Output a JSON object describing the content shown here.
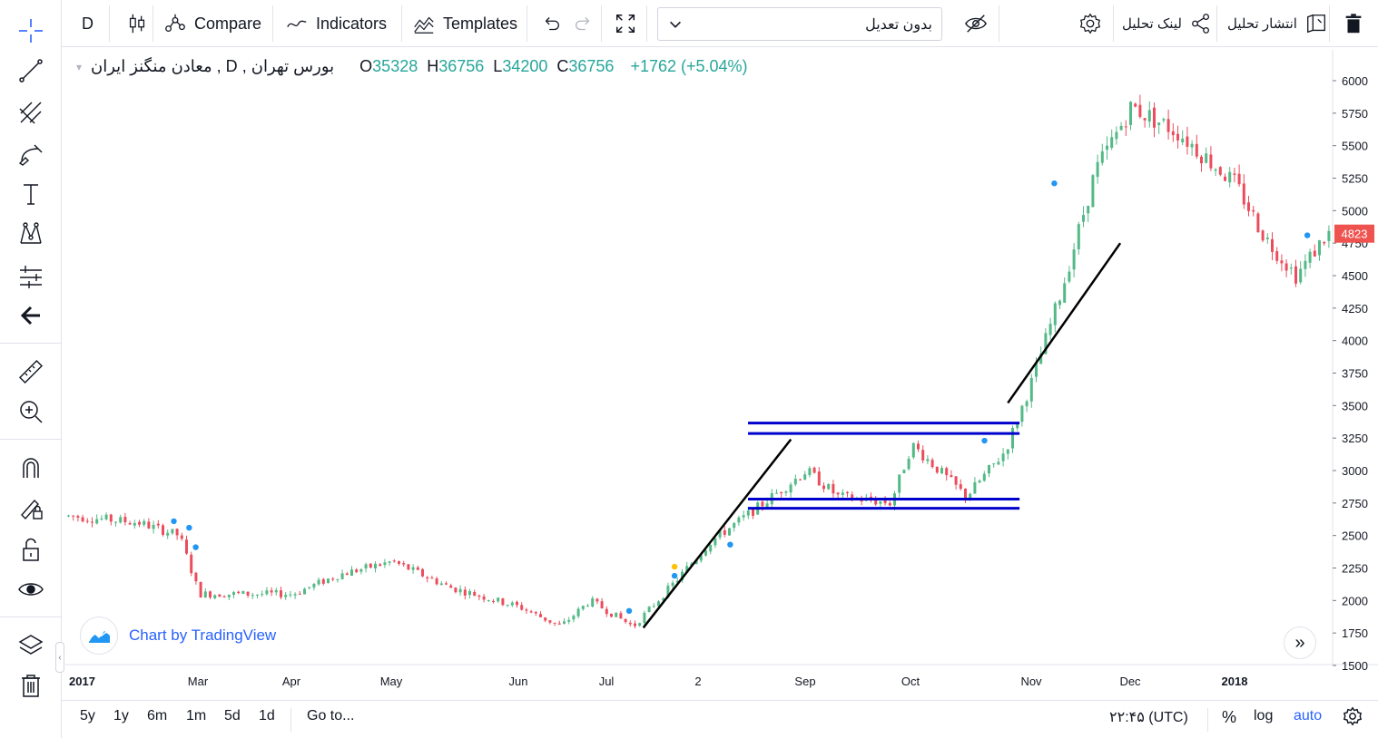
{
  "top_toolbar": {
    "interval": "D",
    "compare": "Compare",
    "indicators": "Indicators",
    "templates": "Templates",
    "adjustment_select": "بدون تعدیل",
    "publish": "انتشار تحلیل",
    "share_link": "لینک تحلیل"
  },
  "legend": {
    "symbol": "معادن منگنز ایران",
    "sep1": ",",
    "interval": "D",
    "sep2": ",",
    "exchange": "بورس تهران",
    "open_label": "O",
    "open": "35328",
    "high_label": "H",
    "high": "36756",
    "low_label": "L",
    "low": "34200",
    "close_label": "C",
    "close": "36756",
    "change": "+1762 (+5.04%)"
  },
  "watermark": "Chart by TradingView",
  "bottom_toolbar": {
    "ranges": [
      "5y",
      "1y",
      "6m",
      "1m",
      "5d",
      "1d"
    ],
    "goto": "Go to...",
    "time": "۲۲:۴۵ (UTC)",
    "percent": "%",
    "log": "log",
    "auto": "auto"
  },
  "colors": {
    "up": "#26a69a",
    "up_candle": "#53b987",
    "down": "#ef5350",
    "down_candle": "#eb4d5c",
    "blue_line": "#0000cc",
    "trend_line": "#000000",
    "accent": "#2962ff",
    "price_label_bg": "#ef5350"
  },
  "chart_data": {
    "type": "candlestick",
    "y_ticks": [
      6000,
      5750,
      5500,
      5250,
      5000,
      4750,
      4500,
      4250,
      4000,
      3750,
      3500,
      3250,
      3000,
      2750,
      2500,
      2250,
      2000,
      1750,
      1500
    ],
    "x_ticks": [
      "2017",
      "Mar",
      "Apr",
      "May",
      "Jun",
      "Jul",
      "2",
      "Sep",
      "Oct",
      "Nov",
      "Dec",
      "2018"
    ],
    "last_price": 4823,
    "last_price_label": "4823",
    "ylim": [
      1500,
      6000
    ],
    "close_path": [
      [
        "2017-01",
        2650
      ],
      [
        "2017-02",
        2600
      ],
      [
        "2017-02-20",
        2500
      ],
      [
        "2017-03",
        2050
      ],
      [
        "2017-04",
        2050
      ],
      [
        "2017-04-15",
        2200
      ],
      [
        "2017-05",
        2300
      ],
      [
        "2017-05-15",
        2100
      ],
      [
        "2017-06",
        1950
      ],
      [
        "2017-06-15",
        1800
      ],
      [
        "2017-06-25",
        2000
      ],
      [
        "2017-07-10",
        1800
      ],
      [
        "2017-07-25",
        2150
      ],
      [
        "2017-08-05",
        2450
      ],
      [
        "2017-08-20",
        2750
      ],
      [
        "2017-09",
        3000
      ],
      [
        "2017-09-10",
        2800
      ],
      [
        "2017-09-25",
        2750
      ],
      [
        "2017-10",
        3200
      ],
      [
        "2017-10-15",
        2800
      ],
      [
        "2017-10-25",
        3150
      ],
      [
        "2017-11",
        3700
      ],
      [
        "2017-11-10",
        4400
      ],
      [
        "2017-11-20",
        5300
      ],
      [
        "2017-12",
        5800
      ],
      [
        "2017-12-15",
        5600
      ],
      [
        "2018-01",
        5200
      ],
      [
        "2018-01-10",
        4800
      ],
      [
        "2018-01-20",
        4500
      ],
      [
        "2018-01-30",
        4823
      ]
    ],
    "horizontal_levels": [
      3365,
      3285,
      2780,
      2710
    ],
    "trend_lines": [
      [
        [
          "2017-07-14",
          1790
        ],
        [
          "2017-08-28",
          3240
        ]
      ],
      [
        [
          "2017-10-26",
          3520
        ],
        [
          "2017-11-28",
          4750
        ]
      ]
    ]
  }
}
